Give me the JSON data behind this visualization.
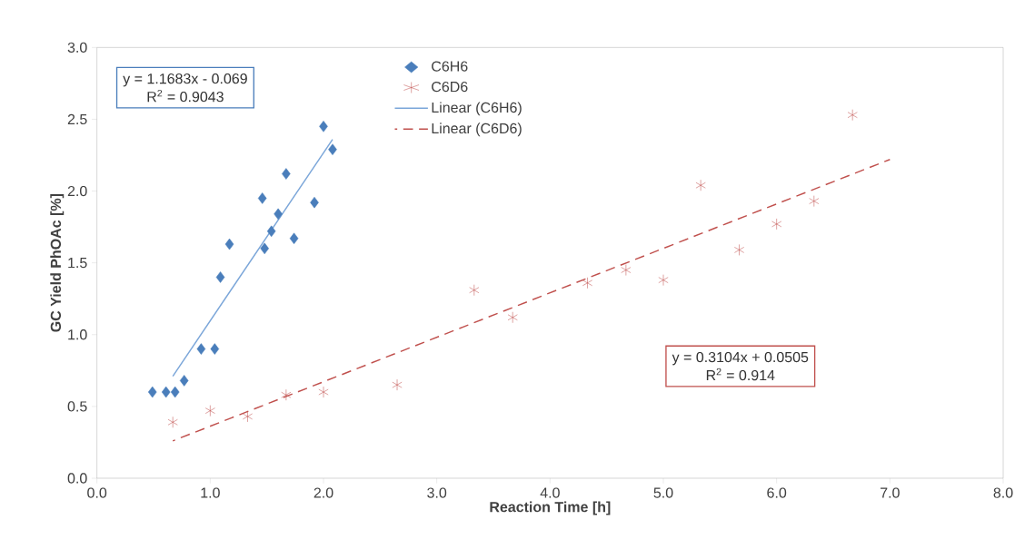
{
  "chart_data": {
    "type": "scatter",
    "xlabel": "Reaction Time [h]",
    "ylabel": "GC Yield PhOAc [%]",
    "xlim": [
      0,
      8
    ],
    "ylim": [
      0,
      3
    ],
    "xticks": [
      {
        "value": 0,
        "label": "0.0"
      },
      {
        "value": 1,
        "label": "1.0"
      },
      {
        "value": 2,
        "label": "2.0"
      },
      {
        "value": 3,
        "label": "3.0"
      },
      {
        "value": 4,
        "label": "4.0"
      },
      {
        "value": 5,
        "label": "5.0"
      },
      {
        "value": 6,
        "label": "6.0"
      },
      {
        "value": 7,
        "label": "7.0"
      },
      {
        "value": 8,
        "label": "8.0"
      }
    ],
    "yticks": [
      {
        "value": 0,
        "label": "0.0"
      },
      {
        "value": 0.5,
        "label": "0.5"
      },
      {
        "value": 1,
        "label": "1.0"
      },
      {
        "value": 1.5,
        "label": "1.5"
      },
      {
        "value": 2,
        "label": "2.0"
      },
      {
        "value": 2.5,
        "label": "2.5"
      },
      {
        "value": 3,
        "label": "3.0"
      }
    ],
    "legend": "top",
    "grid": false,
    "series": [
      {
        "name": "C6H6",
        "marker": "diamond",
        "color": "#4a7ebb",
        "x": [
          0.49,
          0.61,
          0.69,
          0.77,
          0.92,
          1.04,
          1.09,
          1.17,
          1.46,
          1.48,
          1.54,
          1.6,
          1.67,
          1.74,
          1.92,
          2.0,
          2.08
        ],
        "values": [
          0.6,
          0.6,
          0.6,
          0.68,
          0.9,
          0.9,
          1.4,
          1.63,
          1.95,
          1.6,
          1.72,
          1.84,
          2.12,
          1.67,
          1.92,
          2.45,
          2.29
        ]
      },
      {
        "name": "C6D6",
        "marker": "cross",
        "color": "#c0504d",
        "x": [
          0.67,
          1.0,
          1.33,
          1.67,
          2.0,
          2.65,
          3.33,
          3.67,
          4.33,
          4.67,
          5.0,
          5.33,
          5.67,
          6.0,
          6.33,
          6.67
        ],
        "values": [
          0.39,
          0.47,
          0.43,
          0.58,
          0.6,
          0.65,
          1.31,
          1.12,
          1.36,
          1.45,
          1.38,
          2.04,
          1.59,
          1.77,
          1.93,
          2.53
        ]
      },
      {
        "name": "Linear (C6H6)",
        "type": "line",
        "marker": "none",
        "line_style": "solid",
        "color": "#7ba6d9",
        "x": [
          0.67,
          2.08
        ],
        "values": [
          0.71,
          2.36
        ]
      },
      {
        "name": "Linear (C6D6)",
        "type": "line",
        "marker": "none",
        "line_style": "dashed",
        "color": "#c0504d",
        "x": [
          0.67,
          7.0
        ],
        "values": [
          0.26,
          2.22
        ]
      }
    ],
    "annotations": [
      "y = 1.1683x - 0.069",
      "R$^{2}$ = 0.9043",
      "y = 0.3104x + 0.0505",
      "R$^{2}$ = 0.914"
    ]
  }
}
